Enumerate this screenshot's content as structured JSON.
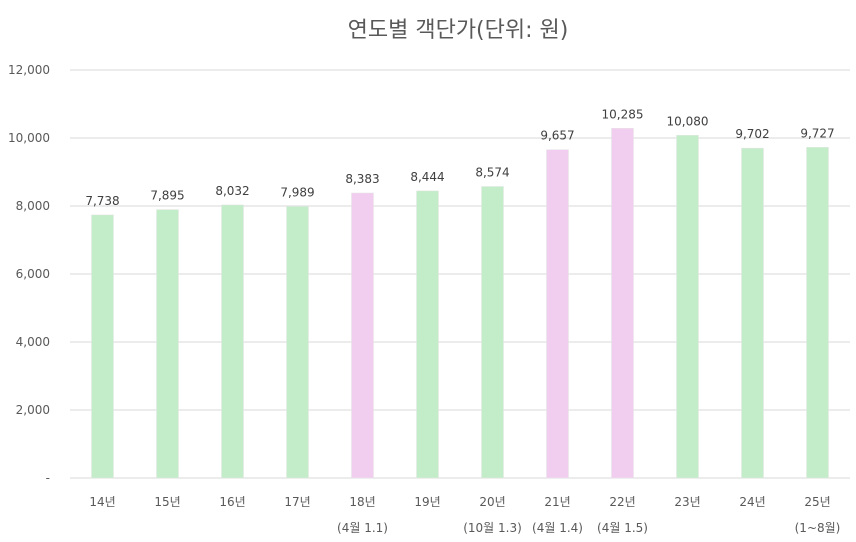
{
  "chart_data": {
    "type": "bar",
    "title": "연도별 객단가(단위: 원)",
    "categories": [
      "14년",
      "15년",
      "16년",
      "17년",
      "18년",
      "19년",
      "20년",
      "21년",
      "22년",
      "23년",
      "24년",
      "25년"
    ],
    "sublabels": [
      "",
      "",
      "",
      "",
      "(4월 1.1)",
      "",
      "(10월 1.3)",
      "(4월 1.4)",
      "(4월 1.5)",
      "",
      "",
      "(1~8월)"
    ],
    "values": [
      7738,
      7895,
      8032,
      7989,
      8383,
      8444,
      8574,
      9657,
      10285,
      10080,
      9702,
      9727
    ],
    "value_labels": [
      "7,738",
      "7,895",
      "8,032",
      "7,989",
      "8,383",
      "8,444",
      "8,574",
      "9,657",
      "10,285",
      "10,080",
      "9,702",
      "9,727"
    ],
    "highlight": [
      false,
      false,
      false,
      false,
      true,
      false,
      false,
      true,
      true,
      false,
      false,
      false
    ],
    "ylim": [
      0,
      12000
    ],
    "yticks": [
      0,
      2000,
      4000,
      6000,
      8000,
      10000,
      12000
    ],
    "ytick_labels": [
      "-",
      "2,000",
      "4,000",
      "6,000",
      "8,000",
      "10,000",
      "12,000"
    ],
    "xlabel": "",
    "ylabel": "",
    "grid": true,
    "legend": "none",
    "colors": {
      "normal": "#c3ecc9",
      "highlight": "#f1cdef",
      "grid": "#d9d9d9",
      "text": "#595959"
    }
  }
}
